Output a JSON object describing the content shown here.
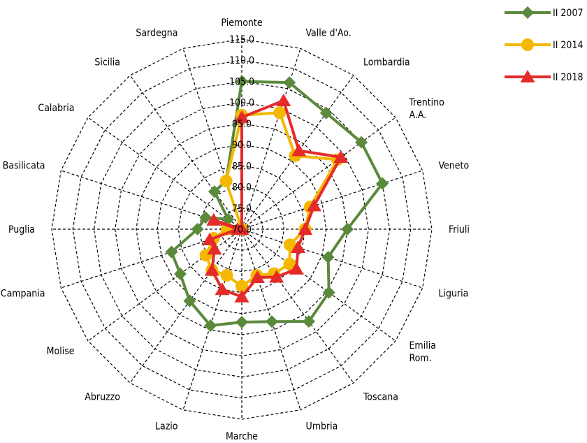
{
  "chart_data": {
    "type": "radar",
    "title": "",
    "categories": [
      "Piemonte",
      "Valle d'Ao.",
      "Lombardia",
      "Trentino\nA.A.",
      "Veneto",
      "Friuli",
      "Liguria",
      "Emilia\nRom.",
      "Toscana",
      "Umbria",
      "Marche",
      "Lazio",
      "Abruzzo",
      "Molise",
      "Campania",
      "Puglia",
      "Basilicata",
      "Calabria",
      "Sicilia",
      "Sardegna"
    ],
    "rlim": [
      70,
      115
    ],
    "ticks": [
      "70.0",
      "75.0",
      "80.0",
      "85.0",
      "90.0",
      "95.0",
      "100.0",
      "105.0",
      "110.0",
      "115.0"
    ],
    "grid": true,
    "legend_position": "top-right",
    "series": [
      {
        "name": "II 2007",
        "color": "#5b8a3c",
        "marker": "diamond",
        "values": [
          105,
          106.5,
          104,
          105,
          105,
          95,
          91.5,
          95.5,
          97,
          93,
          92,
          94,
          91,
          88,
          87.5,
          80.5,
          79,
          74,
          81,
          82
        ]
      },
      {
        "name": "II 2014",
        "color": "#f5b800",
        "marker": "circle",
        "values": [
          97,
          99,
          91.5,
          98,
          87,
          85,
          82,
          84,
          83,
          81.5,
          83.5,
          81.5,
          82,
          80.5,
          77,
          73.5,
          70,
          70,
          70,
          82
        ]
      },
      {
        "name": "II 2018",
        "color": "#e52a2a",
        "marker": "triangle",
        "values": [
          96.5,
          102,
          93,
          99,
          88,
          85,
          84,
          86,
          84,
          82,
          86,
          85,
          82,
          78,
          78,
          71,
          77,
          70,
          70,
          70
        ]
      }
    ]
  }
}
